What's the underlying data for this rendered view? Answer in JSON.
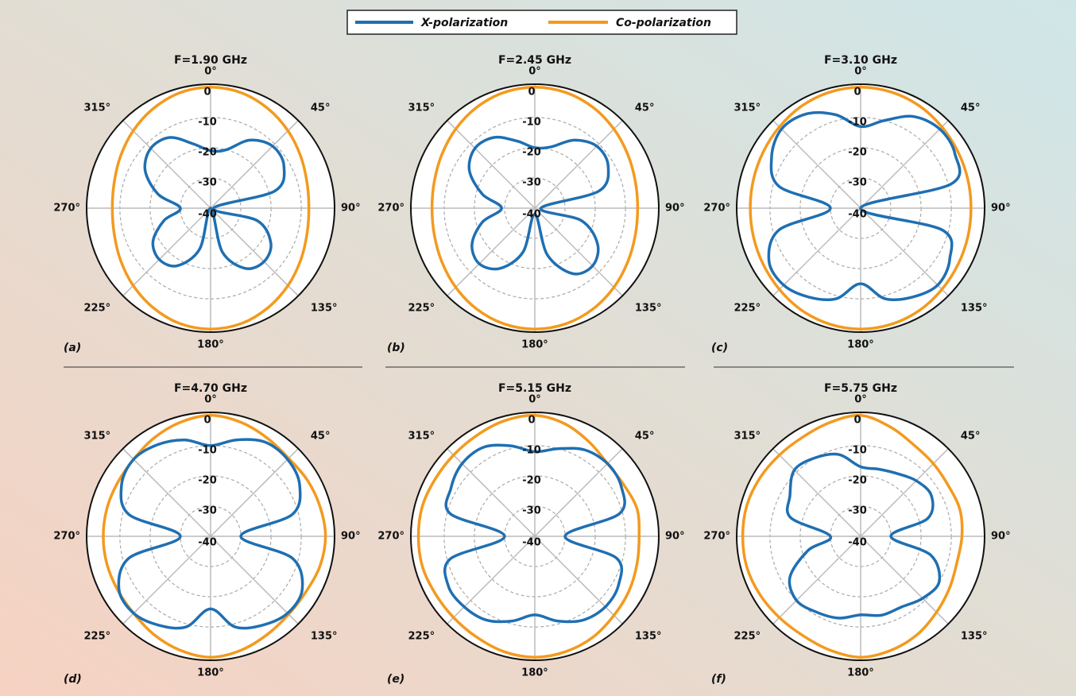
{
  "chart_data": [
    {
      "type": "polar",
      "title": "F=1.90 GHz",
      "label": "(a)",
      "rlim": [
        -40,
        1
      ],
      "rticks": [
        0,
        -10,
        -20,
        -30,
        -40
      ],
      "thetaticks": [
        {
          "value": 0,
          "label": "0°"
        },
        {
          "value": 45,
          "label": "45°"
        },
        {
          "value": 90,
          "label": "90°"
        },
        {
          "value": 135,
          "label": "135°"
        },
        {
          "value": 180,
          "label": "180°"
        },
        {
          "value": 225,
          "label": "225°"
        },
        {
          "value": 270,
          "label": "270°"
        },
        {
          "value": 315,
          "label": "315°"
        }
      ],
      "x": [
        0,
        15,
        30,
        45,
        60,
        75,
        90,
        105,
        120,
        135,
        150,
        165,
        180,
        195,
        210,
        225,
        240,
        255,
        270,
        285,
        300,
        315,
        330,
        345
      ],
      "series": [
        {
          "name": "X-polarization",
          "color": "#1f6fb2",
          "values": [
            -21,
            -20,
            -14,
            -11,
            -12,
            -18,
            -39,
            -24,
            -17,
            -15,
            -17,
            -25,
            -40,
            -26,
            -18,
            -16,
            -18,
            -24,
            -30,
            -22,
            -15,
            -12,
            -13,
            -18
          ]
        },
        {
          "name": "Co-polarization",
          "color": "#f39a1e",
          "values": [
            0,
            -0.5,
            -2,
            -3.8,
            -5.6,
            -7,
            -7.5,
            -7,
            -5.6,
            -3.8,
            -2,
            -0.5,
            0,
            -0.5,
            -2,
            -3.8,
            -5.6,
            -7,
            -7.5,
            -7,
            -5.6,
            -3.8,
            -2,
            -0.5
          ]
        }
      ]
    },
    {
      "type": "polar",
      "title": "F=2.45 GHz",
      "label": "(b)",
      "rlim": [
        -40,
        1
      ],
      "rticks": [
        0,
        -10,
        -20,
        -30,
        -40
      ],
      "thetaticks": [
        {
          "value": 0,
          "label": "0°"
        },
        {
          "value": 45,
          "label": "45°"
        },
        {
          "value": 90,
          "label": "90°"
        },
        {
          "value": 135,
          "label": "135°"
        },
        {
          "value": 180,
          "label": "180°"
        },
        {
          "value": 225,
          "label": "225°"
        },
        {
          "value": 270,
          "label": "270°"
        },
        {
          "value": 315,
          "label": "315°"
        }
      ],
      "x": [
        0,
        15,
        30,
        45,
        60,
        75,
        90,
        105,
        120,
        135,
        150,
        165,
        180,
        195,
        210,
        225,
        240,
        255,
        270,
        285,
        300,
        315,
        330,
        345
      ],
      "series": [
        {
          "name": "X-polarization",
          "color": "#1f6fb2",
          "values": [
            -20,
            -19,
            -14,
            -11,
            -12,
            -18,
            -38,
            -24,
            -16,
            -13,
            -15,
            -24,
            -38,
            -25,
            -17,
            -14,
            -16,
            -22,
            -29,
            -22,
            -15,
            -12,
            -13,
            -17
          ]
        },
        {
          "name": "Co-polarization",
          "color": "#f39a1e",
          "values": [
            0,
            -0.4,
            -1.5,
            -3,
            -4.5,
            -5.6,
            -6,
            -5.6,
            -4.5,
            -3,
            -1.5,
            -0.4,
            0,
            -0.4,
            -1.5,
            -3,
            -4.5,
            -5.6,
            -6,
            -5.6,
            -4.5,
            -3,
            -1.5,
            -0.4
          ]
        }
      ]
    },
    {
      "type": "polar",
      "title": "F=3.10 GHz",
      "label": "(c)",
      "rlim": [
        -40,
        1
      ],
      "rticks": [
        0,
        -10,
        -20,
        -30,
        -40
      ],
      "thetaticks": [
        {
          "value": 0,
          "label": "0°"
        },
        {
          "value": 45,
          "label": "45°"
        },
        {
          "value": 90,
          "label": "90°"
        },
        {
          "value": 135,
          "label": "135°"
        },
        {
          "value": 180,
          "label": "180°"
        },
        {
          "value": 225,
          "label": "225°"
        },
        {
          "value": 270,
          "label": "270°"
        },
        {
          "value": 315,
          "label": "315°"
        }
      ],
      "x": [
        0,
        15,
        30,
        45,
        60,
        75,
        90,
        105,
        120,
        135,
        150,
        165,
        180,
        195,
        210,
        225,
        240,
        255,
        270,
        285,
        300,
        315,
        330,
        345
      ],
      "series": [
        {
          "name": "X-polarization",
          "color": "#1f6fb2",
          "values": [
            -13,
            -10,
            -5,
            -3,
            -4,
            -9,
            -40,
            -12,
            -6,
            -4,
            -6,
            -9,
            -15,
            -9,
            -6,
            -4,
            -5,
            -12,
            -30,
            -12,
            -6,
            -3,
            -4,
            -8
          ]
        },
        {
          "name": "Co-polarization",
          "color": "#f39a1e",
          "values": [
            0,
            -0.3,
            -1,
            -2,
            -2.8,
            -3.3,
            -3.5,
            -3.3,
            -2.8,
            -2,
            -1,
            -0.3,
            0,
            -0.3,
            -1,
            -2,
            -2.8,
            -3.3,
            -3.5,
            -3.3,
            -2.8,
            -2,
            -1,
            -0.3
          ]
        }
      ]
    },
    {
      "type": "polar",
      "title": "F=4.70 GHz",
      "label": "(d)",
      "rlim": [
        -40,
        1
      ],
      "rticks": [
        0,
        -10,
        -20,
        -30,
        -40
      ],
      "thetaticks": [
        {
          "value": 0,
          "label": "0°"
        },
        {
          "value": 45,
          "label": "45°"
        },
        {
          "value": 90,
          "label": "90°"
        },
        {
          "value": 135,
          "label": "135°"
        },
        {
          "value": 180,
          "label": "180°"
        },
        {
          "value": 225,
          "label": "225°"
        },
        {
          "value": 270,
          "label": "270°"
        },
        {
          "value": 315,
          "label": "315°"
        }
      ],
      "x": [
        0,
        15,
        30,
        45,
        60,
        75,
        90,
        105,
        120,
        135,
        150,
        165,
        180,
        195,
        210,
        225,
        240,
        255,
        270,
        285,
        300,
        315,
        330,
        345
      ],
      "series": [
        {
          "name": "X-polarization",
          "color": "#1f6fb2",
          "values": [
            -10,
            -7,
            -4,
            -4,
            -6,
            -12,
            -30,
            -12,
            -5,
            -4,
            -6,
            -9,
            -16,
            -9,
            -6,
            -4,
            -5,
            -12,
            -30,
            -12,
            -6,
            -4,
            -5,
            -7
          ]
        },
        {
          "name": "Co-polarization",
          "color": "#f39a1e",
          "values": [
            0,
            -1,
            -2.5,
            -3.5,
            -3,
            -2.5,
            -2,
            -2.5,
            -3.5,
            -3.5,
            -2.5,
            -1,
            0,
            -1,
            -2.5,
            -4,
            -4.5,
            -4.5,
            -4.5,
            -4.5,
            -4.5,
            -4,
            -2.5,
            -1
          ]
        }
      ]
    },
    {
      "type": "polar",
      "title": "F=5.15 GHz",
      "label": "(e)",
      "rlim": [
        -40,
        1
      ],
      "rticks": [
        0,
        -10,
        -20,
        -30,
        -40
      ],
      "thetaticks": [
        {
          "value": 0,
          "label": "0°"
        },
        {
          "value": 45,
          "label": "45°"
        },
        {
          "value": 90,
          "label": "90°"
        },
        {
          "value": 135,
          "label": "135°"
        },
        {
          "value": 180,
          "label": "180°"
        },
        {
          "value": 225,
          "label": "225°"
        },
        {
          "value": 270,
          "label": "270°"
        },
        {
          "value": 315,
          "label": "315°"
        }
      ],
      "x": [
        0,
        15,
        30,
        45,
        60,
        75,
        90,
        105,
        120,
        135,
        150,
        165,
        180,
        195,
        210,
        225,
        240,
        255,
        270,
        285,
        300,
        315,
        330,
        345
      ],
      "series": [
        {
          "name": "X-polarization",
          "color": "#1f6fb2",
          "values": [
            -12,
            -10,
            -7,
            -6,
            -7,
            -11,
            -30,
            -12,
            -8,
            -7,
            -8,
            -11,
            -14,
            -11,
            -8,
            -7,
            -7,
            -11,
            -30,
            -11,
            -8,
            -6,
            -6,
            -9
          ]
        },
        {
          "name": "Co-polarization",
          "color": "#f39a1e",
          "values": [
            0,
            -1.5,
            -4,
            -6,
            -6,
            -5,
            -5.5,
            -5,
            -4,
            -3,
            -1.5,
            -0.5,
            0,
            -0.5,
            -1.5,
            -2,
            -2,
            -1.5,
            -1.5,
            -1.5,
            -2,
            -2,
            -1.5,
            -0.5
          ]
        }
      ]
    },
    {
      "type": "polar",
      "title": "F=5.75 GHz",
      "label": "(f)",
      "rlim": [
        -40,
        1
      ],
      "rticks": [
        0,
        -10,
        -20,
        -30,
        -40
      ],
      "thetaticks": [
        {
          "value": 0,
          "label": "0°"
        },
        {
          "value": 45,
          "label": "45°"
        },
        {
          "value": 90,
          "label": "90°"
        },
        {
          "value": 135,
          "label": "135°"
        },
        {
          "value": 180,
          "label": "180°"
        },
        {
          "value": 225,
          "label": "225°"
        },
        {
          "value": 270,
          "label": "270°"
        },
        {
          "value": 315,
          "label": "315°"
        }
      ],
      "x": [
        0,
        15,
        30,
        45,
        60,
        75,
        90,
        105,
        120,
        135,
        150,
        165,
        180,
        195,
        210,
        225,
        240,
        255,
        270,
        285,
        300,
        315,
        330,
        345
      ],
      "series": [
        {
          "name": "X-polarization",
          "color": "#1f6fb2",
          "values": [
            -17,
            -17,
            -16,
            -14,
            -13,
            -17,
            -30,
            -16,
            -10,
            -11,
            -13,
            -13,
            -14,
            -12,
            -11,
            -10,
            -13,
            -22,
            -30,
            -16,
            -13,
            -9,
            -10,
            -12
          ]
        },
        {
          "name": "Co-polarization",
          "color": "#f39a1e",
          "values": [
            0,
            -2.5,
            -5,
            -6,
            -6.5,
            -6,
            -6.5,
            -7,
            -6,
            -4.5,
            -2.5,
            -1,
            0,
            -1,
            -2,
            -2,
            -1.5,
            -1,
            -1,
            -1,
            -1.5,
            -2,
            -2,
            -1
          ]
        }
      ]
    }
  ]
}
